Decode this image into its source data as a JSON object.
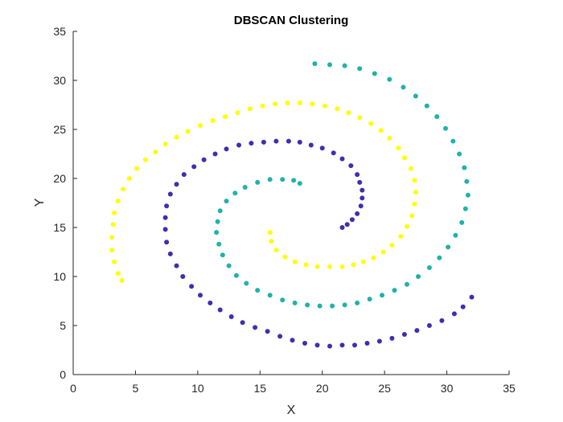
{
  "chart_data": {
    "type": "scatter",
    "title": "DBSCAN Clustering",
    "xlabel": "X",
    "ylabel": "Y",
    "xlim": [
      0,
      35
    ],
    "ylim": [
      0,
      35
    ],
    "xticks": [
      0,
      5,
      10,
      15,
      20,
      25,
      30,
      35
    ],
    "yticks": [
      0,
      5,
      10,
      15,
      20,
      25,
      30,
      35
    ],
    "grid": false,
    "legend": "none",
    "series": [
      {
        "color": "#3f2eb0",
        "points": [
          [
            21.6,
            15.0
          ],
          [
            22.0,
            15.3
          ],
          [
            22.4,
            15.8
          ],
          [
            22.8,
            16.4
          ],
          [
            23.1,
            17.2
          ],
          [
            23.2,
            18.0
          ],
          [
            23.2,
            18.8
          ],
          [
            23.0,
            19.6
          ],
          [
            22.8,
            20.4
          ],
          [
            22.3,
            21.3
          ],
          [
            21.6,
            22.0
          ],
          [
            20.9,
            22.6
          ],
          [
            20.0,
            23.1
          ],
          [
            19.1,
            23.4
          ],
          [
            18.2,
            23.7
          ],
          [
            17.3,
            23.8
          ],
          [
            16.3,
            23.8
          ],
          [
            15.3,
            23.7
          ],
          [
            14.3,
            23.6
          ],
          [
            13.3,
            23.4
          ],
          [
            12.3,
            23.0
          ],
          [
            11.4,
            22.5
          ],
          [
            10.5,
            21.9
          ],
          [
            9.7,
            21.2
          ],
          [
            8.9,
            20.4
          ],
          [
            8.3,
            19.4
          ],
          [
            7.8,
            18.4
          ],
          [
            7.5,
            17.2
          ],
          [
            7.4,
            16.0
          ],
          [
            7.4,
            14.8
          ],
          [
            7.5,
            13.5
          ],
          [
            7.8,
            12.3
          ],
          [
            8.3,
            11.1
          ],
          [
            8.8,
            10.0
          ],
          [
            9.5,
            9.0
          ],
          [
            10.2,
            8.1
          ],
          [
            11.0,
            7.3
          ],
          [
            11.8,
            6.6
          ],
          [
            12.7,
            5.9
          ],
          [
            13.6,
            5.3
          ],
          [
            14.6,
            4.8
          ],
          [
            15.6,
            4.4
          ],
          [
            16.6,
            3.9
          ],
          [
            17.6,
            3.5
          ],
          [
            18.6,
            3.2
          ],
          [
            19.6,
            3.0
          ],
          [
            20.6,
            2.9
          ],
          [
            21.6,
            3.0
          ],
          [
            22.6,
            3.0
          ],
          [
            23.6,
            3.2
          ],
          [
            24.6,
            3.4
          ],
          [
            25.6,
            3.7
          ],
          [
            26.6,
            4.1
          ],
          [
            27.6,
            4.5
          ],
          [
            28.6,
            5.0
          ],
          [
            29.6,
            5.5
          ],
          [
            30.6,
            6.2
          ],
          [
            31.3,
            6.9
          ],
          [
            32.0,
            7.9
          ]
        ]
      },
      {
        "color": "#ffff00",
        "points": [
          [
            3.9,
            9.6
          ],
          [
            3.6,
            10.3
          ],
          [
            3.3,
            11.5
          ],
          [
            3.1,
            12.7
          ],
          [
            3.1,
            14.0
          ],
          [
            3.2,
            15.3
          ],
          [
            3.3,
            16.5
          ],
          [
            3.6,
            17.7
          ],
          [
            4.0,
            18.9
          ],
          [
            4.5,
            20.0
          ],
          [
            5.1,
            21.0
          ],
          [
            5.8,
            21.9
          ],
          [
            6.6,
            22.7
          ],
          [
            7.4,
            23.5
          ],
          [
            8.3,
            24.2
          ],
          [
            9.2,
            24.8
          ],
          [
            10.2,
            25.4
          ],
          [
            11.2,
            25.9
          ],
          [
            12.2,
            26.3
          ],
          [
            13.2,
            26.7
          ],
          [
            14.2,
            27.1
          ],
          [
            15.2,
            27.4
          ],
          [
            16.2,
            27.6
          ],
          [
            17.2,
            27.7
          ],
          [
            18.2,
            27.7
          ],
          [
            19.2,
            27.6
          ],
          [
            20.2,
            27.4
          ],
          [
            21.2,
            27.1
          ],
          [
            22.1,
            26.7
          ],
          [
            23.0,
            26.2
          ],
          [
            23.9,
            25.6
          ],
          [
            24.7,
            24.9
          ],
          [
            25.4,
            24.1
          ],
          [
            26.1,
            23.1
          ],
          [
            26.6,
            22.1
          ],
          [
            27.1,
            21.0
          ],
          [
            27.4,
            19.8
          ],
          [
            27.5,
            18.6
          ],
          [
            27.4,
            17.4
          ],
          [
            27.2,
            16.2
          ],
          [
            26.8,
            15.1
          ],
          [
            26.3,
            14.1
          ],
          [
            25.6,
            13.2
          ],
          [
            24.9,
            12.5
          ],
          [
            24.1,
            11.9
          ],
          [
            23.3,
            11.5
          ],
          [
            22.5,
            11.2
          ],
          [
            21.6,
            11.0
          ],
          [
            20.6,
            11.0
          ],
          [
            19.6,
            11.0
          ],
          [
            18.7,
            11.2
          ],
          [
            17.8,
            11.5
          ],
          [
            17.0,
            12.0
          ],
          [
            16.3,
            12.7
          ],
          [
            15.9,
            13.6
          ],
          [
            15.8,
            14.5
          ]
        ]
      },
      {
        "color": "#20b2aa",
        "points": [
          [
            18.2,
            19.5
          ],
          [
            17.7,
            19.8
          ],
          [
            16.8,
            19.9
          ],
          [
            15.8,
            19.9
          ],
          [
            14.8,
            19.6
          ],
          [
            13.8,
            19.1
          ],
          [
            13.0,
            18.5
          ],
          [
            12.3,
            17.7
          ],
          [
            11.8,
            16.7
          ],
          [
            11.6,
            15.6
          ],
          [
            11.5,
            14.5
          ],
          [
            11.7,
            13.3
          ],
          [
            12.0,
            12.2
          ],
          [
            12.5,
            11.1
          ],
          [
            13.1,
            10.1
          ],
          [
            13.9,
            9.3
          ],
          [
            14.8,
            8.6
          ],
          [
            15.8,
            8.1
          ],
          [
            16.8,
            7.6
          ],
          [
            17.8,
            7.3
          ],
          [
            18.8,
            7.1
          ],
          [
            19.8,
            7.0
          ],
          [
            20.8,
            7.0
          ],
          [
            21.8,
            7.1
          ],
          [
            22.8,
            7.3
          ],
          [
            23.8,
            7.7
          ],
          [
            24.8,
            8.1
          ],
          [
            25.8,
            8.6
          ],
          [
            26.8,
            9.2
          ],
          [
            27.7,
            10.0
          ],
          [
            28.6,
            10.9
          ],
          [
            29.4,
            11.9
          ],
          [
            30.1,
            13.0
          ],
          [
            30.7,
            14.2
          ],
          [
            31.2,
            15.5
          ],
          [
            31.5,
            16.9
          ],
          [
            31.7,
            18.3
          ],
          [
            31.6,
            19.7
          ],
          [
            31.4,
            21.1
          ],
          [
            31.0,
            22.5
          ],
          [
            30.5,
            23.8
          ],
          [
            29.9,
            25.1
          ],
          [
            29.2,
            26.3
          ],
          [
            28.4,
            27.4
          ],
          [
            27.5,
            28.4
          ],
          [
            26.5,
            29.3
          ],
          [
            25.4,
            30.1
          ],
          [
            24.2,
            30.7
          ],
          [
            23.0,
            31.2
          ],
          [
            21.8,
            31.5
          ],
          [
            20.6,
            31.6
          ],
          [
            19.4,
            31.7
          ]
        ]
      }
    ]
  }
}
